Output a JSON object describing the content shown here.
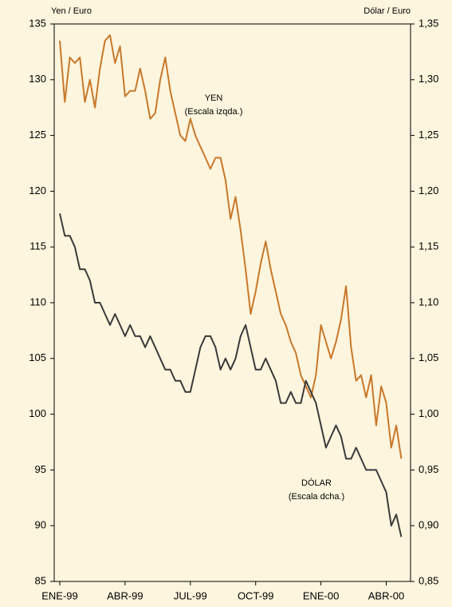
{
  "chart_data": {
    "type": "line",
    "y_label": "Yen / Euro",
    "y2_label": "Dólar / Euro",
    "annotations": [
      "YEN",
      "(Escala izqda.)",
      "DÓLAR",
      "(Escala dcha.)"
    ],
    "categories": [
      "ENE-99",
      null,
      null,
      null,
      null,
      null,
      null,
      null,
      null,
      null,
      null,
      null,
      null,
      "ABR-99",
      null,
      null,
      null,
      null,
      null,
      null,
      null,
      null,
      null,
      null,
      null,
      null,
      "JUL-99",
      null,
      null,
      null,
      null,
      null,
      null,
      null,
      null,
      null,
      null,
      null,
      null,
      "OCT-99",
      null,
      null,
      null,
      null,
      null,
      null,
      null,
      null,
      null,
      null,
      null,
      null,
      "ENE-00",
      null,
      null,
      null,
      null,
      null,
      null,
      null,
      null,
      null,
      null,
      null,
      null,
      "ABR-00",
      null,
      null,
      null
    ],
    "ylim": [
      85,
      135
    ],
    "yticks": [
      85,
      90,
      95,
      100,
      105,
      110,
      115,
      120,
      125,
      130,
      135
    ],
    "y2lim": [
      0.85,
      1.35
    ],
    "y2ticks": [
      {
        "value": 0.85,
        "label": "0,85"
      },
      {
        "value": 0.9,
        "label": "0,90"
      },
      {
        "value": 0.95,
        "label": "0,95"
      },
      {
        "value": 1.0,
        "label": "1,00"
      },
      {
        "value": 1.05,
        "label": "1,05"
      },
      {
        "value": 1.1,
        "label": "1,10"
      },
      {
        "value": 1.15,
        "label": "1,15"
      },
      {
        "value": 1.2,
        "label": "1,20"
      },
      {
        "value": 1.25,
        "label": "1,25"
      },
      {
        "value": 1.3,
        "label": "1,30"
      },
      {
        "value": 1.35,
        "label": "1,35"
      }
    ],
    "series": [
      {
        "name": "YEN",
        "color": "#c8782a",
        "values": [
          133.5,
          128,
          132,
          131.5,
          132,
          128,
          130,
          127.5,
          131,
          133.5,
          134,
          131.5,
          133,
          128.5,
          129,
          129,
          131,
          129,
          126.5,
          127,
          130,
          132,
          129,
          127,
          125,
          124.5,
          126.5,
          125,
          124,
          123,
          122,
          123,
          123,
          121,
          117.5,
          119.5,
          116.5,
          113,
          109,
          111,
          113.5,
          115.5,
          113,
          111,
          109,
          108,
          106.5,
          105.5,
          103.5,
          102.5,
          101.5,
          103.5,
          108,
          106.5,
          105,
          106.5,
          108.5,
          111.5,
          106,
          103,
          103.5,
          101.5,
          103.5,
          99,
          102.5,
          101,
          97,
          99,
          96
        ]
      },
      {
        "name": "DÓLAR",
        "color": "#3a3a3a",
        "axis": "y2",
        "values": [
          1.18,
          1.16,
          1.16,
          1.15,
          1.13,
          1.13,
          1.12,
          1.1,
          1.1,
          1.09,
          1.08,
          1.09,
          1.08,
          1.07,
          1.08,
          1.07,
          1.07,
          1.06,
          1.07,
          1.06,
          1.05,
          1.04,
          1.04,
          1.03,
          1.03,
          1.02,
          1.02,
          1.04,
          1.06,
          1.07,
          1.07,
          1.06,
          1.04,
          1.05,
          1.04,
          1.05,
          1.07,
          1.08,
          1.06,
          1.04,
          1.04,
          1.05,
          1.04,
          1.03,
          1.01,
          1.01,
          1.02,
          1.01,
          1.01,
          1.03,
          1.02,
          1.01,
          0.99,
          0.97,
          0.98,
          0.99,
          0.98,
          0.96,
          0.96,
          0.97,
          0.96,
          0.95,
          0.95,
          0.95,
          0.94,
          0.93,
          0.9,
          0.91,
          0.89
        ]
      }
    ]
  }
}
